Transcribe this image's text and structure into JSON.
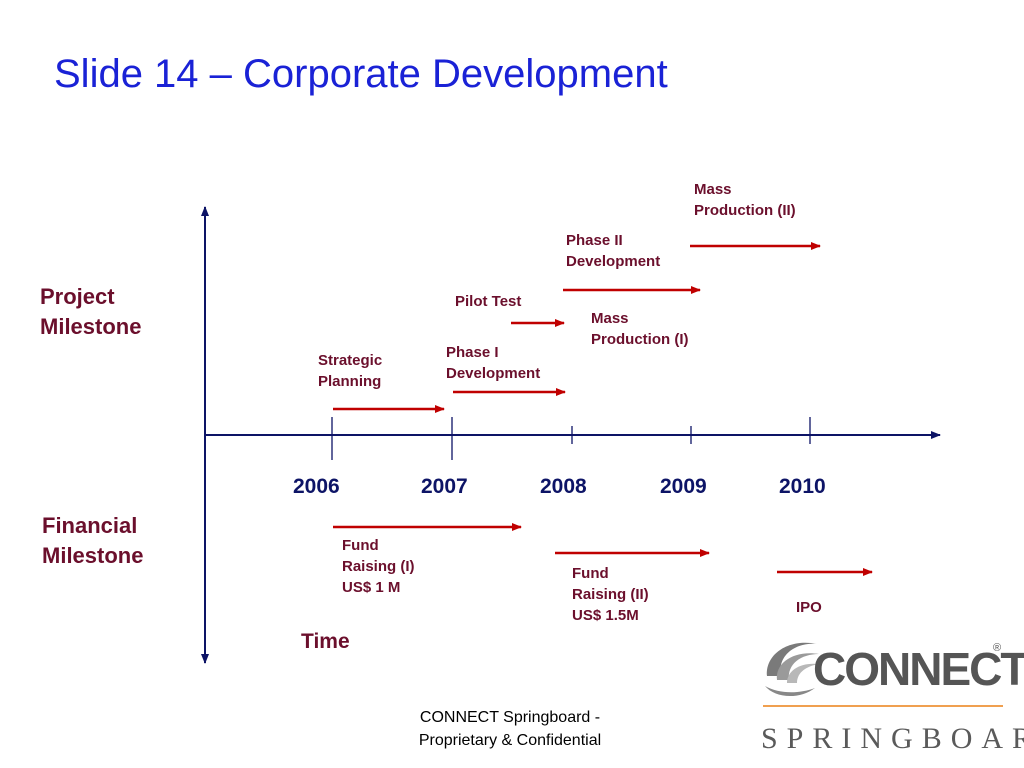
{
  "slide": {
    "title": "Slide 14 – Corporate Development"
  },
  "axes": {
    "vertical_top_label": [
      "Project",
      "Milestone"
    ],
    "vertical_bottom_label": [
      "Financial",
      "Milestone"
    ],
    "time_label": "Time"
  },
  "years": [
    "2006",
    "2007",
    "2008",
    "2009",
    "2010"
  ],
  "project_milestones": [
    {
      "lines": [
        "Strategic",
        "Planning"
      ]
    },
    {
      "lines": [
        "Phase I",
        "Development"
      ]
    },
    {
      "lines": [
        "Pilot Test"
      ]
    },
    {
      "lines": [
        "Mass",
        "Production (I)"
      ]
    },
    {
      "lines": [
        "Phase II",
        "Development"
      ]
    },
    {
      "lines": [
        "Mass",
        "Production (II)"
      ]
    }
  ],
  "financial_milestones": [
    {
      "lines": [
        "Fund",
        "Raising (I)",
        "US$ 1 M"
      ]
    },
    {
      "lines": [
        "Fund",
        "Raising (II)",
        "US$ 1.5M"
      ]
    },
    {
      "lines": [
        "IPO"
      ]
    }
  ],
  "footer": {
    "lines": [
      "CONNECT Springboard -",
      "Proprietary & Confidential"
    ]
  },
  "logo": {
    "wordmark": "CONNECT",
    "registered": "®",
    "tagline": "SPRINGBOARD"
  },
  "colors": {
    "title": "#1a22d6",
    "axis": "#0d1466",
    "arrow": "#c00000",
    "label": "#6b0f2c",
    "logo_orange": "#f0a050"
  }
}
